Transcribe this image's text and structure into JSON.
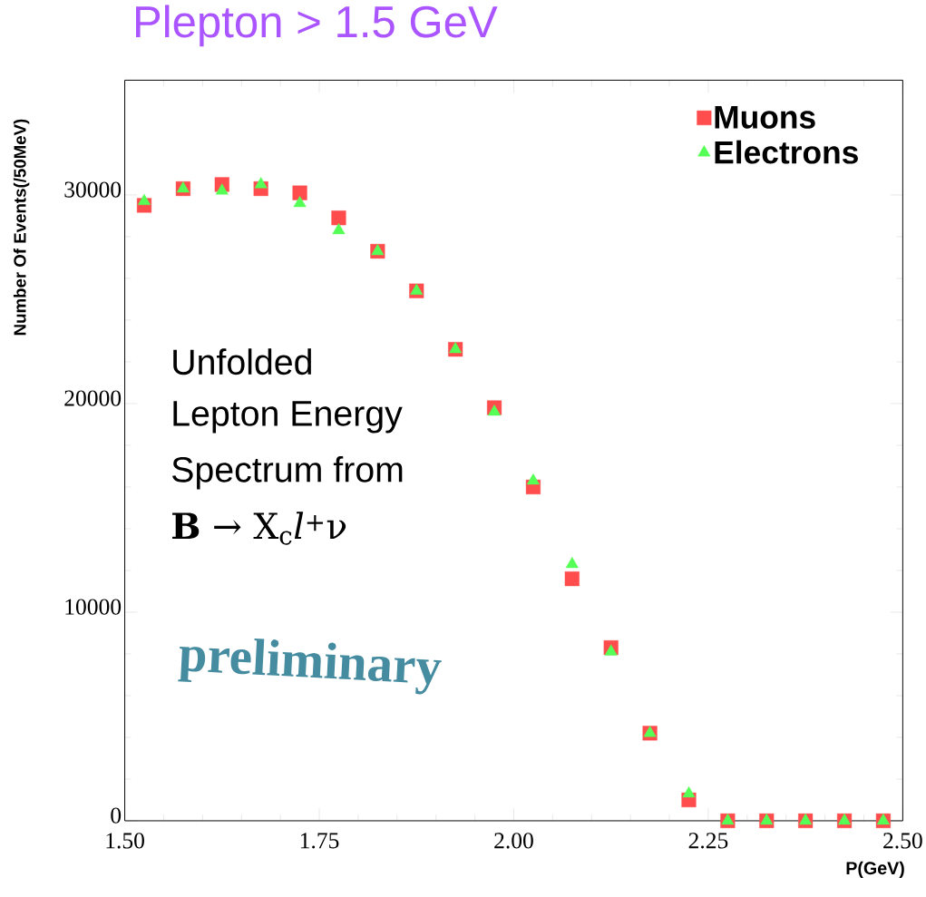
{
  "chart_data": {
    "type": "scatter",
    "title": "Plepton > 1.5 GeV",
    "xlabel": "P(GeV)",
    "ylabel": "Number Of Events(/50MeV)",
    "x": [
      1.525,
      1.575,
      1.625,
      1.675,
      1.725,
      1.775,
      1.825,
      1.875,
      1.925,
      1.975,
      2.025,
      2.075,
      2.125,
      2.175,
      2.225,
      2.275,
      2.325,
      2.375,
      2.425,
      2.475
    ],
    "series": [
      {
        "name": "Muons",
        "color": "#ff4d4d",
        "marker": "square",
        "values": [
          29500,
          30300,
          30500,
          30300,
          30100,
          28900,
          27300,
          25400,
          22600,
          19800,
          16000,
          11600,
          8300,
          4200,
          1000,
          0,
          0,
          0,
          0,
          0
        ]
      },
      {
        "name": "Electrons",
        "color": "#55ff55",
        "marker": "triangle",
        "values": [
          29700,
          30300,
          30200,
          30500,
          29600,
          28300,
          27300,
          25400,
          22600,
          19600,
          16300,
          12300,
          8100,
          4200,
          1300,
          0,
          0,
          0,
          0,
          0
        ]
      }
    ],
    "xlim": [
      1.5,
      2.5
    ],
    "ylim": [
      0,
      35500
    ],
    "xticks": [
      {
        "value": 1.5,
        "label": "1.50"
      },
      {
        "value": 1.75,
        "label": "1.75"
      },
      {
        "value": 2.0,
        "label": "2.00"
      },
      {
        "value": 2.25,
        "label": "2.25"
      },
      {
        "value": 2.5,
        "label": "2.50"
      }
    ],
    "yticks": [
      0,
      10000,
      20000,
      30000
    ],
    "legend": "top right",
    "annotations": [
      "Unfolded",
      "Lepton Energy",
      "Spectrum from",
      "**B** → X$_{c}$*l*$^{+}$ν",
      "preliminary"
    ]
  }
}
